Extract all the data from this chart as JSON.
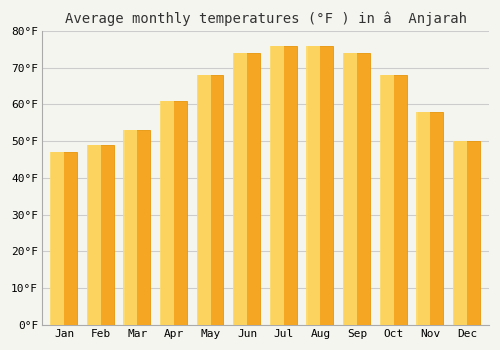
{
  "months": [
    "Jan",
    "Feb",
    "Mar",
    "Apr",
    "May",
    "Jun",
    "Jul",
    "Aug",
    "Sep",
    "Oct",
    "Nov",
    "Dec"
  ],
  "values": [
    47,
    49,
    53,
    61,
    68,
    74,
    76,
    76,
    74,
    68,
    58,
    50
  ],
  "bar_color_outer": "#F5A623",
  "bar_color_inner": "#FFD966",
  "title": "Average monthly temperatures (°F ) in â  Anjarah",
  "ylim": [
    0,
    80
  ],
  "ytick_step": 10,
  "background_color": "#f5f5f0",
  "plot_bg_color": "#f5f5f0",
  "grid_color": "#cccccc",
  "title_fontsize": 10,
  "tick_fontsize": 8,
  "bar_edge_color": "#E8960A",
  "bar_width": 0.7
}
